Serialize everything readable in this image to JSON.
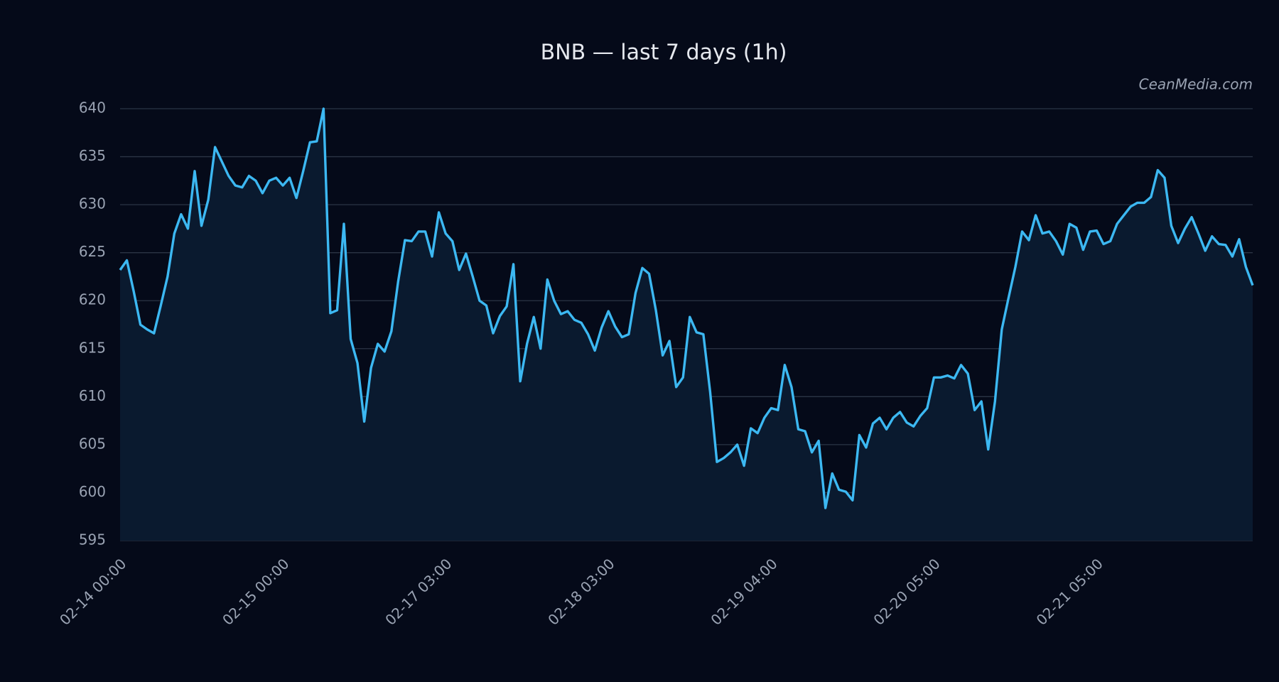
{
  "chart_data": {
    "type": "line",
    "title": "BNB — last 7 days (1h)",
    "annotation": "CeanMedia.com",
    "categories": [
      "02-14 00:00",
      null,
      null,
      null,
      null,
      null,
      null,
      null,
      null,
      null,
      null,
      null,
      null,
      null,
      null,
      null,
      null,
      null,
      null,
      null,
      null,
      null,
      null,
      null,
      "02-15 00:00",
      null,
      null,
      null,
      null,
      null,
      null,
      null,
      null,
      null,
      null,
      null,
      null,
      null,
      null,
      null,
      null,
      null,
      null,
      null,
      null,
      null,
      null,
      null,
      "02-17 03:00",
      null,
      null,
      null,
      null,
      null,
      null,
      null,
      null,
      null,
      null,
      null,
      null,
      null,
      null,
      null,
      null,
      null,
      null,
      null,
      null,
      null,
      null,
      null,
      "02-18 03:00",
      null,
      null,
      null,
      null,
      null,
      null,
      null,
      null,
      null,
      null,
      null,
      null,
      null,
      null,
      null,
      null,
      null,
      null,
      null,
      null,
      null,
      null,
      null,
      "02-19 04:00",
      null,
      null,
      null,
      null,
      null,
      null,
      null,
      null,
      null,
      null,
      null,
      null,
      null,
      null,
      null,
      null,
      null,
      null,
      null,
      null,
      null,
      null,
      null,
      "02-20 05:00",
      null,
      null,
      null,
      null,
      null,
      null,
      null,
      null,
      null,
      null,
      null,
      null,
      null,
      null,
      null,
      null,
      null,
      null,
      null,
      null,
      null,
      null,
      null,
      "02-21 05:00",
      null,
      null,
      null,
      null,
      null,
      null,
      null,
      null,
      null,
      null,
      null,
      null,
      null,
      null,
      null,
      null,
      null,
      null,
      null,
      null,
      null,
      null,
      null
    ],
    "values": [
      623.2,
      624.2,
      621,
      617.5,
      617,
      616.6,
      619.5,
      622.5,
      627,
      629,
      627.5,
      633.5,
      627.8,
      630.5,
      636,
      634.5,
      633,
      632,
      631.8,
      633,
      632.5,
      631.2,
      632.5,
      632.8,
      632,
      632.8,
      630.7,
      633.5,
      636.5,
      636.6,
      640,
      618.7,
      619,
      628,
      616,
      613.5,
      607.4,
      613,
      615.5,
      614.7,
      616.8,
      622,
      626.3,
      626.2,
      627.2,
      627.2,
      624.6,
      629.2,
      627,
      626.2,
      623.2,
      624.9,
      622.5,
      620,
      619.5,
      616.6,
      618.4,
      619.4,
      623.8,
      611.6,
      615.5,
      618.3,
      615,
      622.2,
      620,
      618.6,
      618.9,
      618,
      617.7,
      616.5,
      614.8,
      617.2,
      618.9,
      617.3,
      616.2,
      616.5,
      620.8,
      623.4,
      622.8,
      619,
      614.3,
      615.8,
      611,
      612,
      618.3,
      616.7,
      616.5,
      610.5,
      603.2,
      603.6,
      604.2,
      605,
      602.8,
      606.7,
      606.2,
      607.8,
      608.8,
      608.6,
      613.3,
      611,
      606.6,
      606.4,
      604.2,
      605.4,
      598.4,
      602,
      600.3,
      600.1,
      599.2,
      606,
      604.7,
      607.2,
      607.8,
      606.6,
      607.8,
      608.4,
      607.3,
      606.9,
      608,
      608.8,
      612,
      612,
      612.2,
      611.9,
      613.3,
      612.4,
      608.6,
      609.5,
      604.5,
      609.5,
      617,
      620.3,
      623.5,
      627.2,
      626.3,
      628.9,
      627,
      627.2,
      626.2,
      624.8,
      628,
      627.6,
      625.3,
      627.2,
      627.3,
      625.9,
      626.2,
      628,
      628.9,
      629.8,
      630.2,
      630.2,
      630.8,
      633.6,
      632.8,
      627.8,
      626,
      627.5,
      628.7,
      627,
      625.2,
      626.7,
      625.9,
      625.8,
      624.6,
      626.4,
      623.5,
      621.6
    ],
    "color": "#3cb8f2",
    "area": true,
    "ylim": [
      595,
      640
    ],
    "yticks": [
      595,
      600,
      605,
      610,
      615,
      620,
      625,
      630,
      635,
      640
    ],
    "grid": true
  }
}
